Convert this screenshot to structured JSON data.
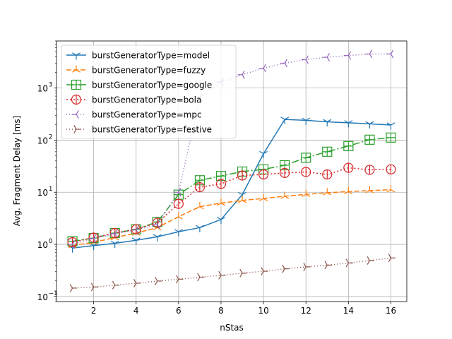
{
  "chart_data": {
    "type": "line",
    "xlabel": "nStas",
    "ylabel": "Avg. Fragment Delay [ms]",
    "xlim": [
      0.25,
      16.75
    ],
    "ylim": [
      0.08,
      8000
    ],
    "yscale": "log",
    "grid": true,
    "legend_position": "top-left",
    "x_ticks": [
      2,
      4,
      6,
      8,
      10,
      12,
      14,
      16
    ],
    "x_tick_labels": [
      "2",
      "4",
      "6",
      "8",
      "10",
      "12",
      "14",
      "16"
    ],
    "y_ticks": [
      0.1,
      1,
      10,
      100,
      1000
    ],
    "y_tick_labels": [
      "10",
      "10",
      "10",
      "10",
      "10"
    ],
    "y_tick_exponents": [
      "−1",
      "0",
      "1",
      "2",
      "3"
    ],
    "x": [
      1,
      2,
      3,
      4,
      5,
      6,
      7,
      8,
      9,
      10,
      11,
      12,
      13,
      14,
      15,
      16
    ],
    "series": [
      {
        "name": "burstGeneratorType=model",
        "color": "#1f77b4",
        "dash": "",
        "marker": "tri-down",
        "values": [
          0.85,
          0.95,
          1.05,
          1.2,
          1.4,
          1.75,
          2.1,
          3.0,
          9.0,
          55,
          250,
          240,
          225,
          215,
          205,
          195
        ]
      },
      {
        "name": "burstGeneratorType=fuzzy",
        "color": "#ff7f0e",
        "dash": "7,3",
        "marker": "tri-up",
        "values": [
          0.95,
          1.1,
          1.35,
          1.65,
          2.1,
          3.4,
          5.3,
          6.2,
          7.0,
          7.6,
          8.4,
          9.1,
          9.8,
          10.3,
          10.8,
          11.2
        ]
      },
      {
        "name": "burstGeneratorType=google",
        "color": "#2ca02c",
        "dash": "10,3,2,3",
        "marker": "square-plus",
        "values": [
          1.15,
          1.32,
          1.65,
          1.95,
          2.7,
          9.0,
          17.0,
          20.5,
          25.0,
          27.5,
          33.0,
          46.0,
          60.0,
          77.0,
          102.0,
          112.0
        ]
      },
      {
        "name": "burstGeneratorType=bola",
        "color": "#d62728",
        "dash": "2,3",
        "marker": "circle-vline",
        "values": [
          1.1,
          1.35,
          1.65,
          1.95,
          2.6,
          6.0,
          12.5,
          14.5,
          21.0,
          22.0,
          23.5,
          24.5,
          22.0,
          29.5,
          27.0,
          27.5
        ]
      },
      {
        "name": "burstGeneratorType=mpc",
        "color": "#9467bd",
        "dash": "1,3",
        "marker": "tri-left",
        "values": [
          1.0,
          1.3,
          1.6,
          1.9,
          2.4,
          10.0,
          650,
          1300,
          1800,
          2400,
          3000,
          3500,
          3900,
          4200,
          4500,
          4500
        ]
      },
      {
        "name": "burstGeneratorType=festive",
        "color": "#8c564b",
        "dash": "1,3",
        "marker": "tri-right",
        "values": [
          0.145,
          0.152,
          0.165,
          0.18,
          0.198,
          0.215,
          0.235,
          0.255,
          0.28,
          0.305,
          0.34,
          0.37,
          0.4,
          0.44,
          0.49,
          0.55
        ]
      }
    ]
  }
}
